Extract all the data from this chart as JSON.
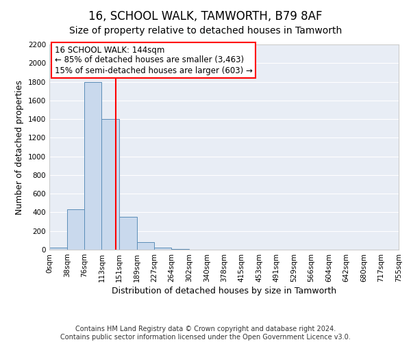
{
  "title": "16, SCHOOL WALK, TAMWORTH, B79 8AF",
  "subtitle": "Size of property relative to detached houses in Tamworth",
  "xlabel": "Distribution of detached houses by size in Tamworth",
  "ylabel": "Number of detached properties",
  "footer_line1": "Contains HM Land Registry data © Crown copyright and database right 2024.",
  "footer_line2": "Contains public sector information licensed under the Open Government Licence v3.0.",
  "bin_edges": [
    0,
    38,
    76,
    113,
    151,
    189,
    227,
    264,
    302,
    340,
    378,
    415,
    453,
    491,
    529,
    566,
    604,
    642,
    680,
    717,
    755
  ],
  "bin_counts": [
    20,
    430,
    1800,
    1400,
    350,
    80,
    25,
    5,
    0,
    0,
    0,
    0,
    0,
    0,
    0,
    0,
    0,
    0,
    0,
    0
  ],
  "bar_color": "#c9d9ed",
  "bar_edge_color": "#5b8db8",
  "property_line_x": 144,
  "property_line_color": "red",
  "annotation_title": "16 SCHOOL WALK: 144sqm",
  "annotation_line1": "← 85% of detached houses are smaller (3,463)",
  "annotation_line2": "15% of semi-detached houses are larger (603) →",
  "annotation_box_color": "white",
  "annotation_box_edge_color": "red",
  "ylim": [
    0,
    2200
  ],
  "yticks": [
    0,
    200,
    400,
    600,
    800,
    1000,
    1200,
    1400,
    1600,
    1800,
    2000,
    2200
  ],
  "xtick_labels": [
    "0sqm",
    "38sqm",
    "76sqm",
    "113sqm",
    "151sqm",
    "189sqm",
    "227sqm",
    "264sqm",
    "302sqm",
    "340sqm",
    "378sqm",
    "415sqm",
    "453sqm",
    "491sqm",
    "529sqm",
    "566sqm",
    "604sqm",
    "642sqm",
    "680sqm",
    "717sqm",
    "755sqm"
  ],
  "background_color": "#ffffff",
  "plot_bg_color": "#e8edf5",
  "grid_color": "#ffffff",
  "title_fontsize": 12,
  "subtitle_fontsize": 10,
  "axis_label_fontsize": 9,
  "tick_fontsize": 7.5,
  "annotation_fontsize": 8.5,
  "footer_fontsize": 7
}
